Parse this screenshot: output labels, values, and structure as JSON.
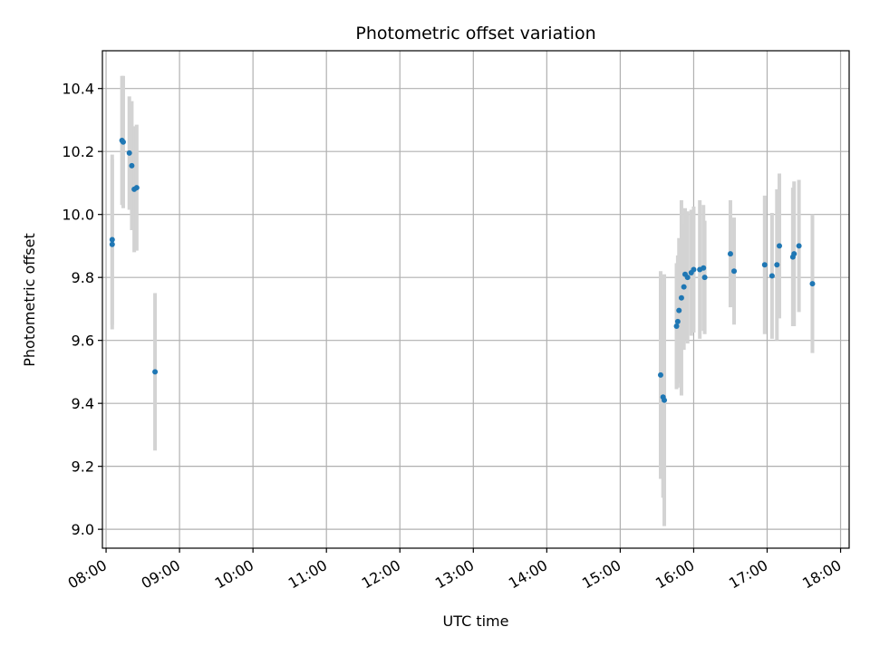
{
  "chart_data": {
    "type": "scatter",
    "title": "Photometric offset variation",
    "xlabel": "UTC time",
    "ylabel": "Photometric offset",
    "x_unit": "time of day (HH:MM, UTC)",
    "xlim": [
      "07:57",
      "18:07"
    ],
    "ylim": [
      8.94,
      10.52
    ],
    "x_ticks": [
      "08:00",
      "09:00",
      "10:00",
      "11:00",
      "12:00",
      "13:00",
      "14:00",
      "15:00",
      "16:00",
      "17:00",
      "18:00"
    ],
    "y_ticks": [
      9.0,
      9.2,
      9.4,
      9.6,
      9.8,
      10.0,
      10.2,
      10.4
    ],
    "y_tick_labels": [
      "9.0",
      "9.2",
      "9.4",
      "9.6",
      "9.8",
      "10.0",
      "10.2",
      "10.4"
    ],
    "grid": true,
    "legend": "none",
    "point_color": "#1f77b4",
    "errorbar_color": "#d3d3d3",
    "series": [
      {
        "points": [
          {
            "x": "08:05",
            "y": 9.905,
            "err": 0.27
          },
          {
            "x": "08:05",
            "y": 9.92,
            "err": 0.27
          },
          {
            "x": "08:13",
            "y": 10.235,
            "err": 0.205
          },
          {
            "x": "08:14",
            "y": 10.23,
            "err": 0.21
          },
          {
            "x": "08:19",
            "y": 10.195,
            "err": 0.18
          },
          {
            "x": "08:21",
            "y": 10.155,
            "err": 0.205
          },
          {
            "x": "08:23",
            "y": 10.08,
            "err": 0.2
          },
          {
            "x": "08:25",
            "y": 10.085,
            "err": 0.2
          },
          {
            "x": "08:40",
            "y": 9.5,
            "err": 0.25
          },
          {
            "x": "15:33",
            "y": 9.49,
            "err": 0.33
          },
          {
            "x": "15:35",
            "y": 9.42,
            "err": 0.32
          },
          {
            "x": "15:36",
            "y": 9.41,
            "err": 0.4
          },
          {
            "x": "15:46",
            "y": 9.645,
            "err": 0.2
          },
          {
            "x": "15:47",
            "y": 9.66,
            "err": 0.21
          },
          {
            "x": "15:48",
            "y": 9.695,
            "err": 0.23
          },
          {
            "x": "15:50",
            "y": 9.735,
            "err": 0.31
          },
          {
            "x": "15:52",
            "y": 9.77,
            "err": 0.2
          },
          {
            "x": "15:53",
            "y": 9.81,
            "err": 0.21
          },
          {
            "x": "15:55",
            "y": 9.8,
            "err": 0.21
          },
          {
            "x": "15:58",
            "y": 9.815,
            "err": 0.2
          },
          {
            "x": "16:00",
            "y": 9.825,
            "err": 0.2
          },
          {
            "x": "16:05",
            "y": 9.825,
            "err": 0.22
          },
          {
            "x": "16:08",
            "y": 9.83,
            "err": 0.2
          },
          {
            "x": "16:09",
            "y": 9.8,
            "err": 0.18
          },
          {
            "x": "16:30",
            "y": 9.875,
            "err": 0.17
          },
          {
            "x": "16:33",
            "y": 9.82,
            "err": 0.17
          },
          {
            "x": "16:58",
            "y": 9.84,
            "err": 0.22
          },
          {
            "x": "17:04",
            "y": 9.805,
            "err": 0.2
          },
          {
            "x": "17:08",
            "y": 9.84,
            "err": 0.24
          },
          {
            "x": "17:10",
            "y": 9.9,
            "err": 0.23
          },
          {
            "x": "17:21",
            "y": 9.865,
            "err": 0.22
          },
          {
            "x": "17:22",
            "y": 9.875,
            "err": 0.23
          },
          {
            "x": "17:26",
            "y": 9.9,
            "err": 0.21
          },
          {
            "x": "17:37",
            "y": 9.78,
            "err": 0.22
          }
        ]
      }
    ]
  }
}
